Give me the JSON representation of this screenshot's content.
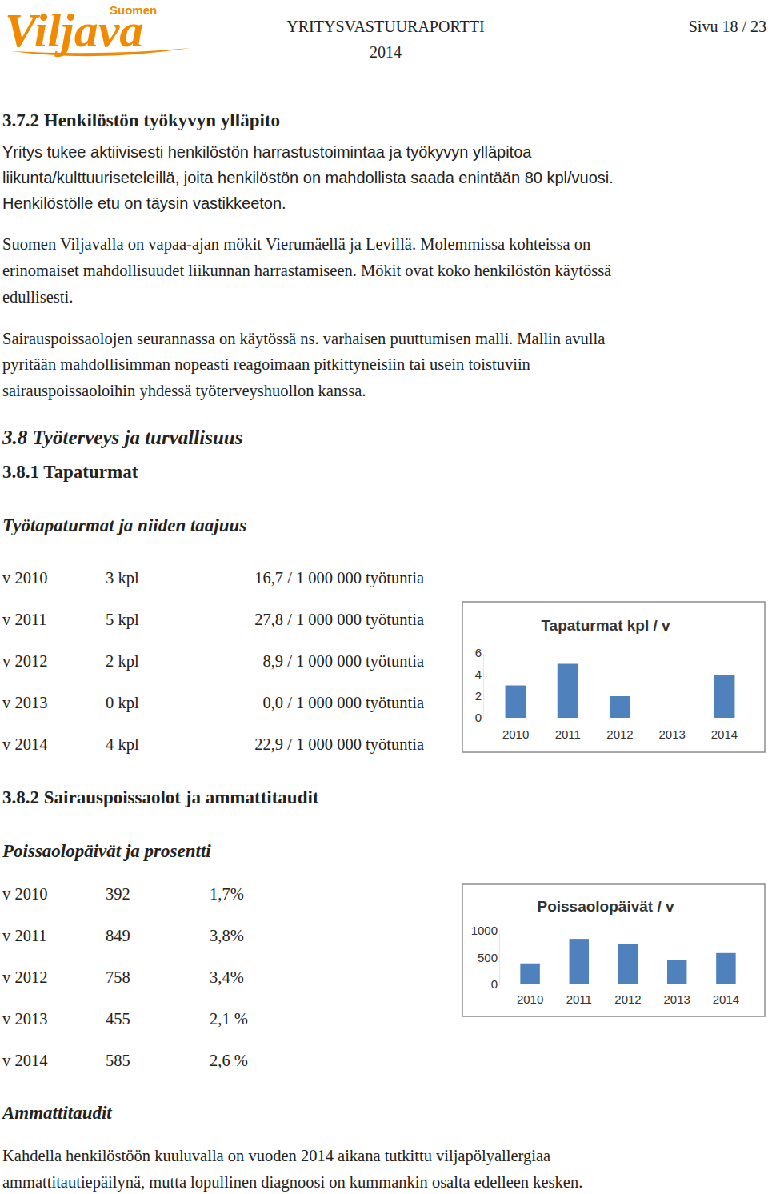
{
  "header": {
    "logo_small": "Suomen",
    "logo": "Viljava",
    "title": "YRITYSVASTUURAPORTTI",
    "year": "2014",
    "page": "Sivu 18 / 23"
  },
  "section_372": {
    "heading": "3.7.2 Henkilöstön työkyvyn ylläpito",
    "paragraphs": [
      [
        "Yritys tukee aktiivisesti henkilöstön harrastustoimintaa ja työkyvyn ylläpitoa",
        "liikunta/kulttuuriseteleillä, joita henkilöstön on mahdollista saada enintään 80 kpl/vuosi.",
        "Henkilöstölle etu on täysin vastikkeeton."
      ],
      [
        "Suomen Viljavalla on vapaa-ajan mökit Vierumäellä ja Levillä. Molemmissa kohteissa on",
        "erinomaiset mahdollisuudet liikunnan harrastamiseen. Mökit ovat koko henkilöstön käytössä",
        "edullisesti."
      ],
      [
        "Sairauspoissaolojen seurannassa on käytössä ns. varhaisen puuttumisen malli. Mallin avulla",
        "pyritään mahdollisimman nopeasti reagoimaan pitkittyneisiin tai usein toistuviin",
        "sairauspoissaoloihin yhdessä työterveyshuollon kanssa."
      ]
    ]
  },
  "section_38": {
    "heading": "3.8 Työterveys ja turvallisuus"
  },
  "section_381": {
    "heading": "3.8.1 Tapaturmat",
    "subheading": "Työtapaturmat ja niiden taajuus",
    "table": {
      "rows": [
        [
          "v 2010",
          "3 kpl",
          "16,7 / 1 000 000 työtuntia"
        ],
        [
          "v 2011",
          "5 kpl",
          "27,8 / 1 000 000 työtuntia"
        ],
        [
          "v 2012",
          "2 kpl",
          "8,9 / 1 000 000 työtuntia"
        ],
        [
          "v 2013",
          "0 kpl",
          "0,0 / 1 000 000 työtuntia"
        ],
        [
          "v 2014",
          "4 kpl",
          "22,9 / 1 000 000 työtuntia"
        ]
      ]
    }
  },
  "section_382": {
    "heading": "3.8.2 Sairauspoissaolot ja ammattitaudit",
    "subheading": "Poissaolopäivät ja prosentti",
    "table": {
      "rows": [
        [
          "v 2010",
          "392",
          "1,7%"
        ],
        [
          "v 2011",
          "849",
          "3,8%"
        ],
        [
          "v 2012",
          "758",
          "3,4%"
        ],
        [
          "v 2013",
          "455",
          "2,1 %"
        ],
        [
          "v 2014",
          "585",
          "2,6 %"
        ]
      ]
    },
    "subheading2": "Ammattitaudit",
    "paragraph": [
      "Kahdella henkilöstöön kuuluvalla on vuoden 2014 aikana tutkittu viljapölyallergiaa",
      "ammattitautiepäilynä, mutta lopullinen diagnoosi on kummankin osalta edelleen kesken."
    ]
  },
  "chart_data": [
    {
      "type": "bar",
      "title": "Tapaturmat kpl / v",
      "categories": [
        "2010",
        "2011",
        "2012",
        "2013",
        "2014"
      ],
      "values": [
        3,
        5,
        2,
        0,
        4
      ],
      "color": "#4f81bd",
      "ylim": [
        0,
        6
      ],
      "yticks": [
        0,
        2,
        4,
        6
      ],
      "grid": false
    },
    {
      "type": "bar",
      "title": "Poissaolopäivät / v",
      "categories": [
        "2010",
        "2011",
        "2012",
        "2013",
        "2014"
      ],
      "values": [
        392,
        849,
        758,
        455,
        585
      ],
      "color": "#4f81bd",
      "ylim": [
        0,
        1000
      ],
      "yticks": [
        0,
        500,
        1000
      ],
      "grid": false
    }
  ]
}
